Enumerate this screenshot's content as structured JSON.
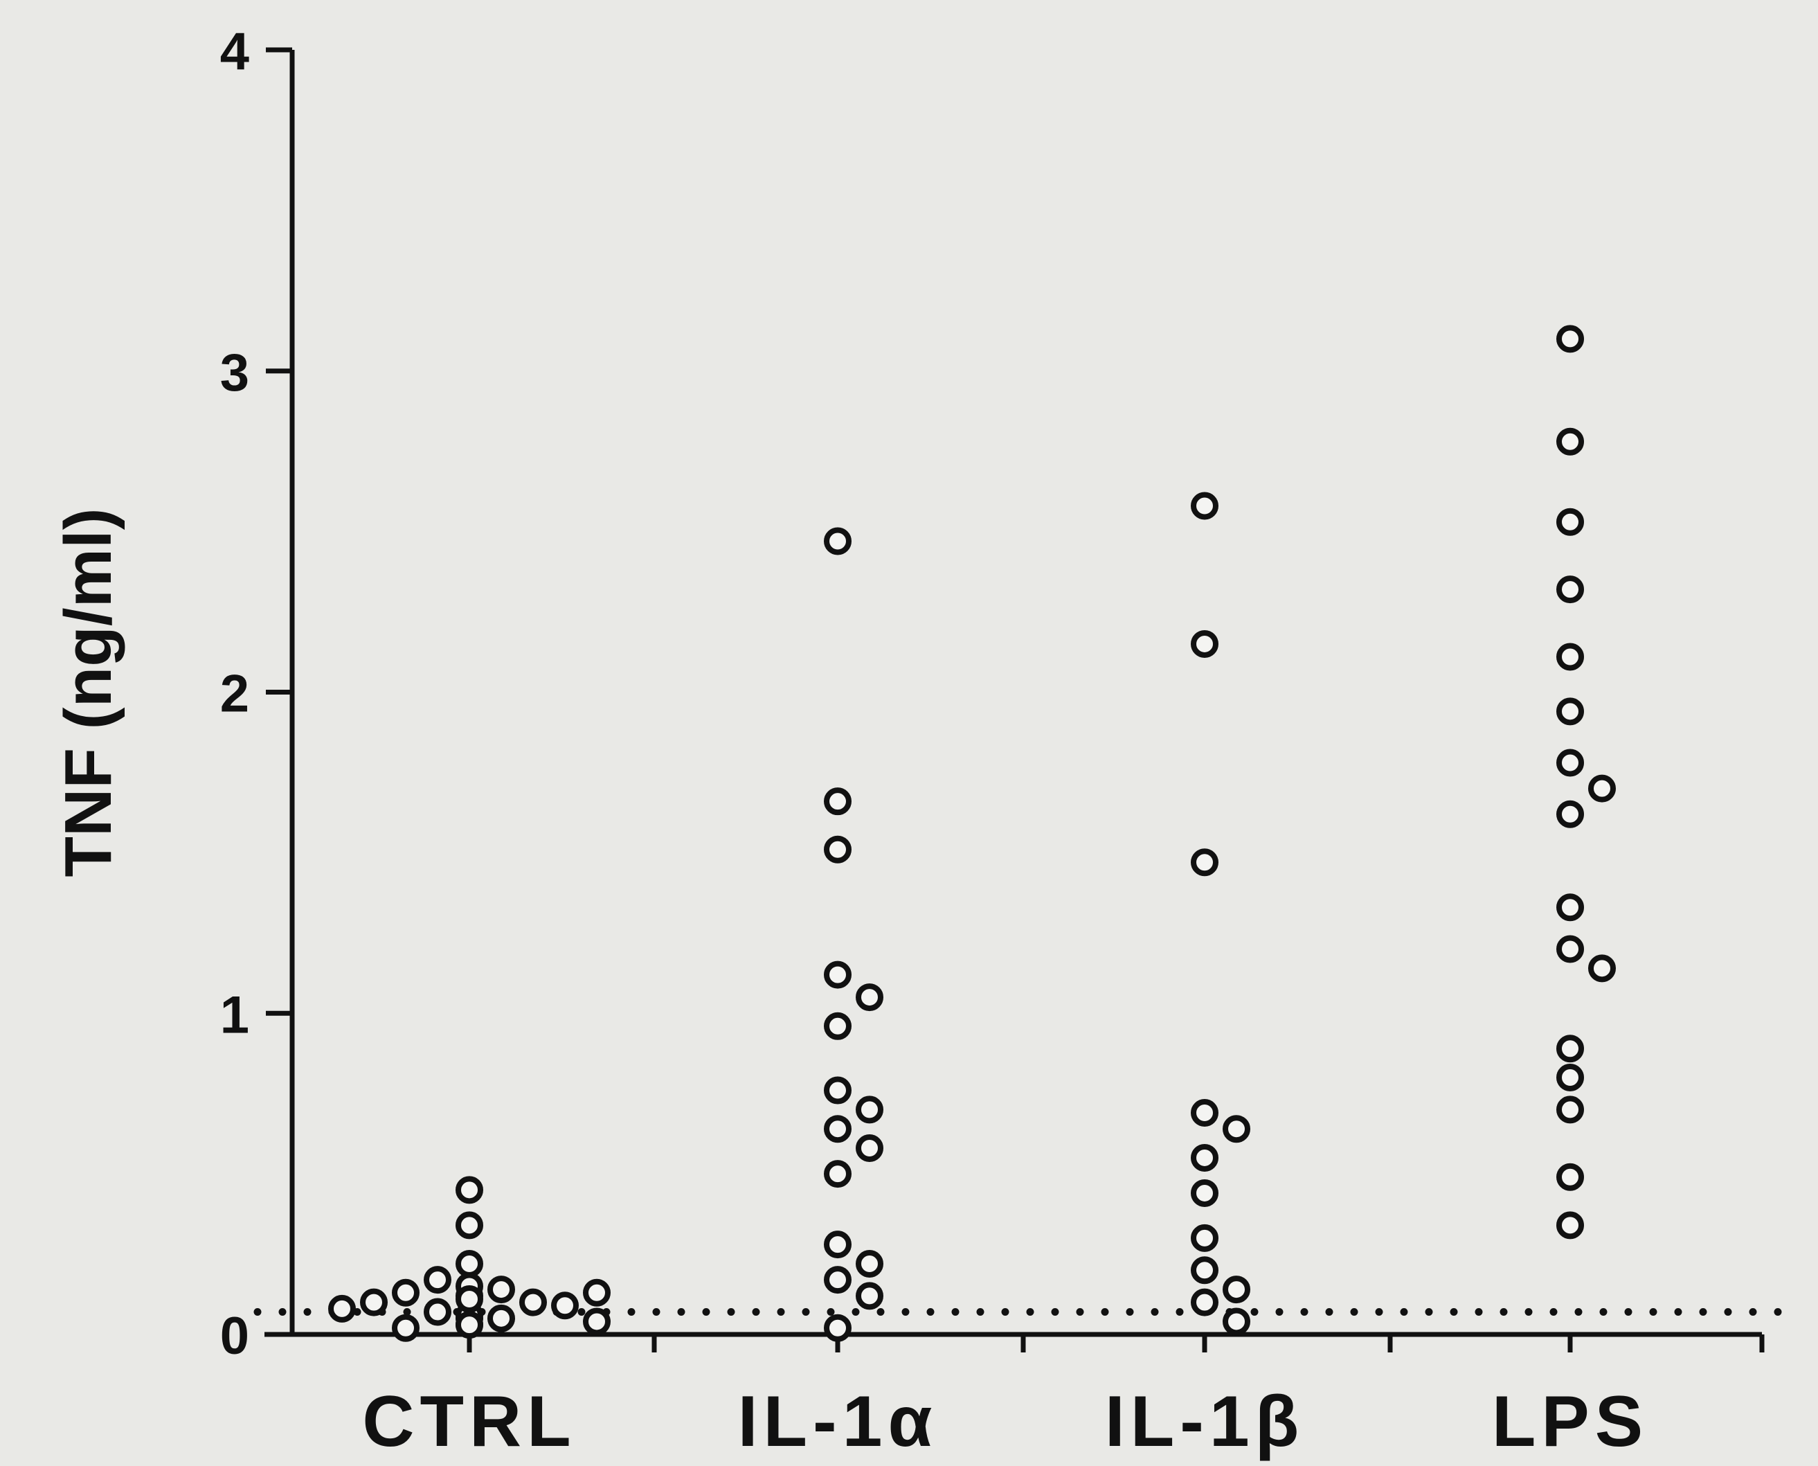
{
  "chart_data": {
    "type": "scatter",
    "ylabel": "TNF   (ng/ml)",
    "xlabel": "",
    "title": "",
    "categories": [
      "CTRL",
      "IL-1α",
      "IL-1β",
      "LPS"
    ],
    "ylim": [
      0,
      4
    ],
    "yticks": [
      "0",
      "1",
      "2",
      "3",
      "4"
    ],
    "grid": false,
    "detection_limit": 0.07,
    "series": [
      {
        "category": "CTRL",
        "values": [
          0.12,
          0.05,
          0.14,
          0.07,
          0.03,
          0.1,
          0.13,
          0.02,
          0.09,
          0.45,
          0.34,
          0.22,
          0.1,
          0.04,
          0.13,
          0.08,
          0.15,
          0.05,
          0.17,
          0.06,
          0.11,
          0.03
        ]
      },
      {
        "category": "IL-1α",
        "values": [
          2.47,
          1.66,
          1.51,
          1.12,
          1.05,
          0.96,
          0.76,
          0.7,
          0.64,
          0.58,
          0.5,
          0.28,
          0.22,
          0.17,
          0.12,
          0.02
        ]
      },
      {
        "category": "IL-1β",
        "values": [
          2.58,
          2.15,
          1.47,
          0.69,
          0.64,
          0.55,
          0.44,
          0.3,
          0.2,
          0.14,
          0.1,
          0.04
        ]
      },
      {
        "category": "LPS",
        "values": [
          3.1,
          2.78,
          2.53,
          2.32,
          2.11,
          1.94,
          1.78,
          1.7,
          1.62,
          1.33,
          1.2,
          1.14,
          0.89,
          0.8,
          0.7,
          0.49,
          0.34
        ]
      }
    ]
  }
}
